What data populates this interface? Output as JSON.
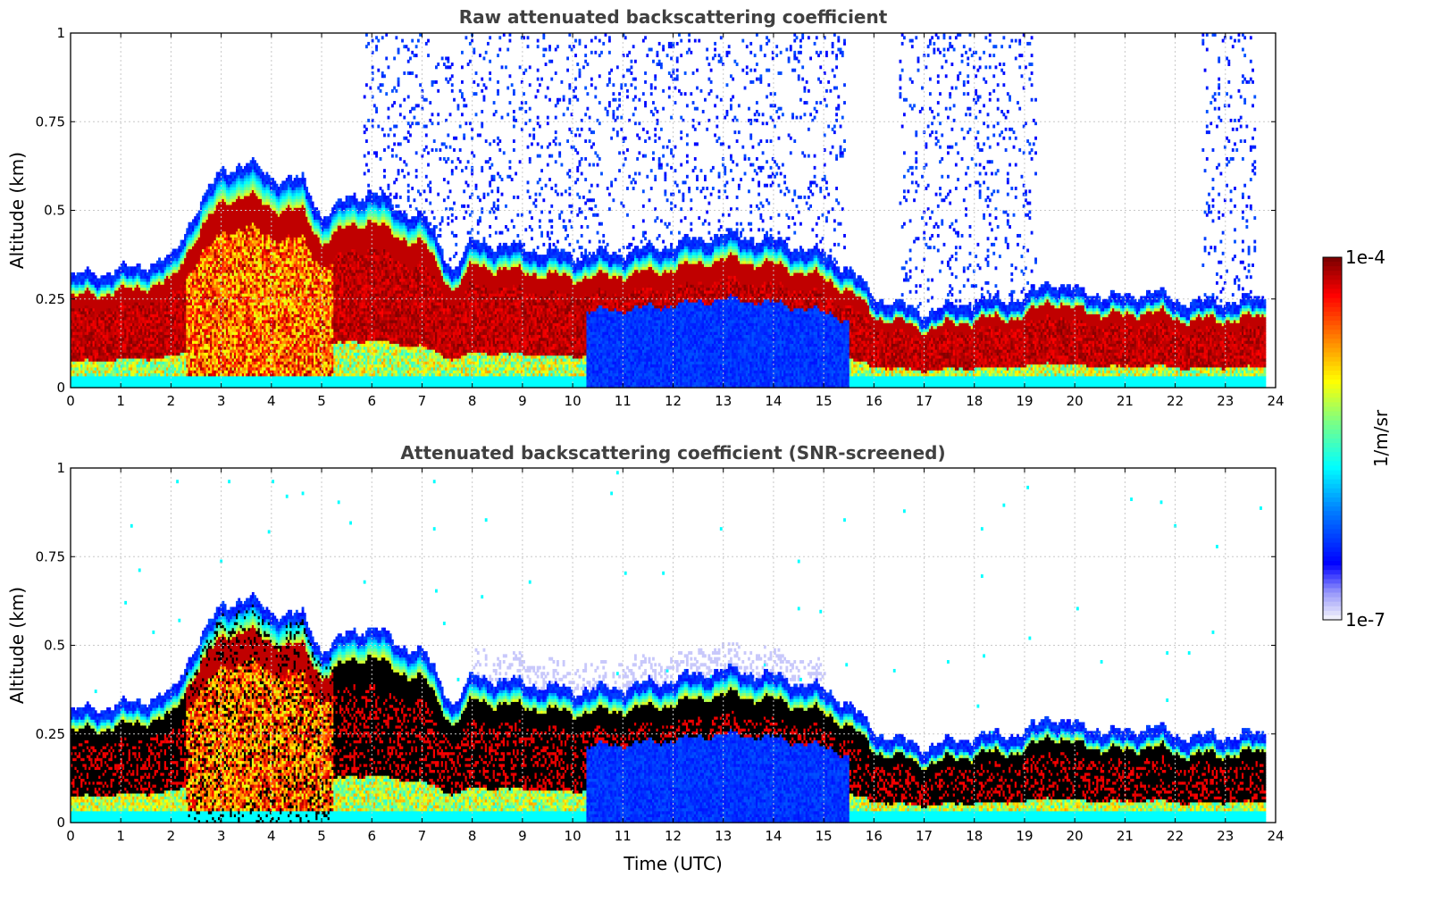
{
  "chart_data": [
    {
      "type": "heatmap",
      "title": "Raw attenuated backscattering coefficient",
      "xlabel": "",
      "ylabel": "Altitude (km)",
      "xlim": [
        0,
        24
      ],
      "ylim": [
        0,
        1
      ],
      "x_ticks": [
        "0",
        "1",
        "2",
        "3",
        "4",
        "5",
        "6",
        "7",
        "8",
        "9",
        "10",
        "11",
        "12",
        "13",
        "14",
        "15",
        "16",
        "17",
        "18",
        "19",
        "20",
        "21",
        "22",
        "23",
        "24"
      ],
      "y_ticks": [
        "0",
        "0.25",
        "0.5",
        "0.75",
        "1"
      ],
      "grid": true,
      "screened": false,
      "data_end_hour": 23.8,
      "layer_top_km": [
        [
          0,
          0.28
        ],
        [
          1,
          0.3
        ],
        [
          2,
          0.33
        ],
        [
          2.4,
          0.45
        ],
        [
          3,
          0.58
        ],
        [
          3.5,
          0.6
        ],
        [
          4,
          0.56
        ],
        [
          4.6,
          0.55
        ],
        [
          5,
          0.45
        ],
        [
          5.5,
          0.5
        ],
        [
          6,
          0.52
        ],
        [
          6.5,
          0.47
        ],
        [
          7,
          0.45
        ],
        [
          7.6,
          0.3
        ],
        [
          8,
          0.38
        ],
        [
          9,
          0.36
        ],
        [
          10,
          0.34
        ],
        [
          11,
          0.35
        ],
        [
          12,
          0.37
        ],
        [
          13,
          0.4
        ],
        [
          14,
          0.38
        ],
        [
          15,
          0.34
        ],
        [
          15.5,
          0.3
        ],
        [
          16,
          0.22
        ],
        [
          17,
          0.18
        ],
        [
          18,
          0.21
        ],
        [
          19,
          0.22
        ],
        [
          19.5,
          0.27
        ],
        [
          20,
          0.24
        ],
        [
          21,
          0.22
        ],
        [
          21.5,
          0.24
        ],
        [
          22,
          0.21
        ],
        [
          23,
          0.21
        ],
        [
          23.8,
          0.22
        ]
      ],
      "clear_air_interval": [
        10.25,
        15.5
      ]
    },
    {
      "type": "heatmap",
      "title": "Attenuated backscattering coefficient (SNR-screened)",
      "xlabel": "Time (UTC)",
      "ylabel": "Altitude (km)",
      "xlim": [
        0,
        24
      ],
      "ylim": [
        0,
        1
      ],
      "x_ticks": [
        "0",
        "1",
        "2",
        "3",
        "4",
        "5",
        "6",
        "7",
        "8",
        "9",
        "10",
        "11",
        "12",
        "13",
        "14",
        "15",
        "16",
        "17",
        "18",
        "19",
        "20",
        "21",
        "22",
        "23",
        "24"
      ],
      "y_ticks": [
        "0",
        "0.25",
        "0.5",
        "0.75",
        "1"
      ],
      "grid": true,
      "screened": true,
      "data_end_hour": 23.8,
      "layer_top_km": [
        [
          0,
          0.28
        ],
        [
          1,
          0.3
        ],
        [
          2,
          0.33
        ],
        [
          2.4,
          0.45
        ],
        [
          3,
          0.58
        ],
        [
          3.5,
          0.6
        ],
        [
          4,
          0.56
        ],
        [
          4.6,
          0.55
        ],
        [
          5,
          0.45
        ],
        [
          5.5,
          0.5
        ],
        [
          6,
          0.52
        ],
        [
          6.5,
          0.47
        ],
        [
          7,
          0.45
        ],
        [
          7.6,
          0.3
        ],
        [
          8,
          0.38
        ],
        [
          9,
          0.36
        ],
        [
          10,
          0.34
        ],
        [
          11,
          0.35
        ],
        [
          12,
          0.37
        ],
        [
          13,
          0.4
        ],
        [
          14,
          0.38
        ],
        [
          15,
          0.34
        ],
        [
          15.5,
          0.3
        ],
        [
          16,
          0.22
        ],
        [
          17,
          0.18
        ],
        [
          18,
          0.21
        ],
        [
          19,
          0.22
        ],
        [
          19.5,
          0.27
        ],
        [
          20,
          0.24
        ],
        [
          21,
          0.22
        ],
        [
          21.5,
          0.24
        ],
        [
          22,
          0.21
        ],
        [
          23,
          0.21
        ],
        [
          23.8,
          0.22
        ]
      ],
      "clear_air_interval": [
        10.25,
        15.5
      ]
    }
  ],
  "colorbar": {
    "label": "1/m/sr",
    "min_label": "1e-7",
    "max_label": "1e-4",
    "colormap": [
      "#eeeefb",
      "#0000ff",
      "#0080ff",
      "#00ffff",
      "#80ff80",
      "#ffff00",
      "#ff8000",
      "#ff0000",
      "#800000"
    ]
  }
}
